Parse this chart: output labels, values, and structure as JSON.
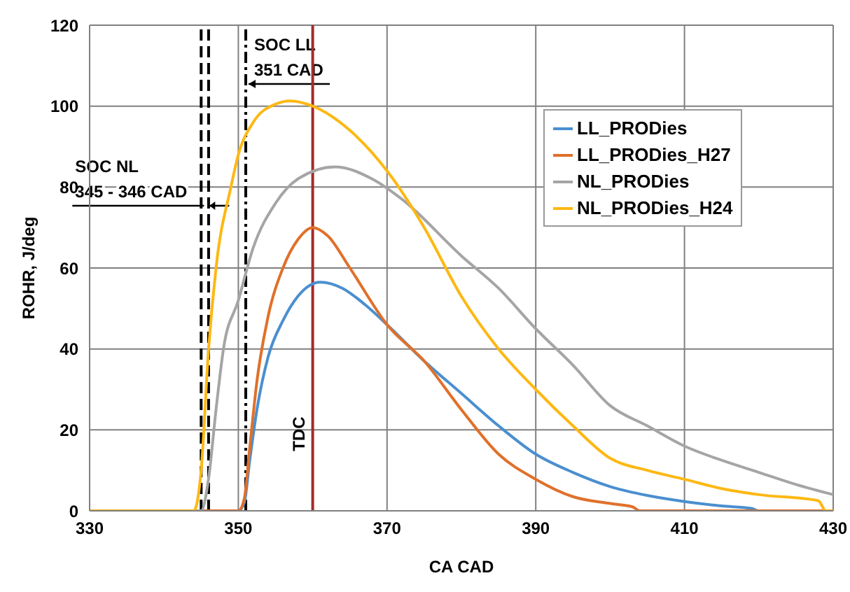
{
  "chart_data": {
    "type": "line",
    "xlabel": "CA CAD",
    "ylabel": "ROHR, J/deg",
    "xlim": [
      330,
      430
    ],
    "xticks": [
      330,
      350,
      370,
      390,
      410,
      430
    ],
    "ylim": [
      0,
      120
    ],
    "yticks": [
      0,
      20,
      40,
      60,
      80,
      100,
      120
    ],
    "grid": true,
    "legend": "right",
    "marker": "none",
    "line_style": "solid",
    "series": [
      {
        "name": "LL_PRODies",
        "color": "#4a8fd0",
        "x": [
          330,
          350,
          350.8,
          351.5,
          352.5,
          354,
          356,
          358,
          361,
          364,
          367,
          370,
          375,
          380,
          385,
          390,
          395,
          400,
          405,
          410,
          415,
          419,
          420,
          430
        ],
        "values": [
          0,
          0,
          2,
          12,
          25,
          38,
          47,
          53,
          56.5,
          55,
          51,
          46,
          37,
          29,
          21,
          14,
          9.5,
          6,
          3.8,
          2.3,
          1.2,
          0.6,
          0,
          0
        ]
      },
      {
        "name": "LL_PRODies_H27",
        "color": "#e0702a",
        "x": [
          330,
          350,
          350.8,
          351.5,
          352.5,
          354,
          356,
          358,
          360,
          362,
          365,
          370,
          375,
          380,
          385,
          390,
          395,
          400,
          403,
          404,
          430
        ],
        "values": [
          0,
          0,
          3,
          15,
          32,
          48,
          60,
          67,
          70,
          68,
          60,
          46,
          37,
          25,
          14,
          7.8,
          3.5,
          1.8,
          1,
          0,
          0
        ]
      },
      {
        "name": "NL_PRODies",
        "color": "#a5a5a5",
        "x": [
          330,
          345,
          346,
          347,
          348,
          350,
          352,
          355,
          358,
          363,
          368,
          372,
          380,
          385,
          390,
          395,
          400,
          405,
          410,
          415,
          420,
          425,
          430
        ],
        "values": [
          0,
          0,
          8,
          25,
          40,
          52,
          65,
          76,
          82,
          85,
          82,
          77,
          63,
          55,
          45,
          36,
          26,
          21,
          16,
          12.5,
          9.5,
          6.5,
          4
        ]
      },
      {
        "name": "NL_PRODies_H24",
        "color": "#fdb813",
        "x": [
          330,
          344,
          345,
          346,
          347,
          349,
          350,
          352,
          355,
          357,
          360,
          365,
          370,
          375,
          380,
          385,
          390,
          395,
          400,
          405,
          410,
          415,
          420,
          428,
          429,
          430
        ],
        "values": [
          0,
          0,
          10,
          40,
          60,
          80,
          88,
          96,
          100.5,
          101.3,
          100,
          94,
          84,
          70,
          53,
          40,
          30,
          21,
          13,
          10,
          7.8,
          5.5,
          4,
          2.5,
          0,
          0
        ]
      }
    ],
    "ref_lines": [
      {
        "axis": "x",
        "value": 345,
        "label": "SOC NL\n345 - 346 CAD",
        "color": "#000000",
        "line_style": "dashed"
      },
      {
        "axis": "x",
        "value": 346,
        "label": null,
        "color": "#000000",
        "line_style": "dashed"
      },
      {
        "axis": "x",
        "value": 351,
        "label": "SOC LL\n351 CAD",
        "color": "#000000",
        "line_style": "dashdot"
      },
      {
        "axis": "x",
        "value": 360,
        "label": "TDC",
        "color": "#a52a2a",
        "line_style": "solid"
      }
    ]
  }
}
